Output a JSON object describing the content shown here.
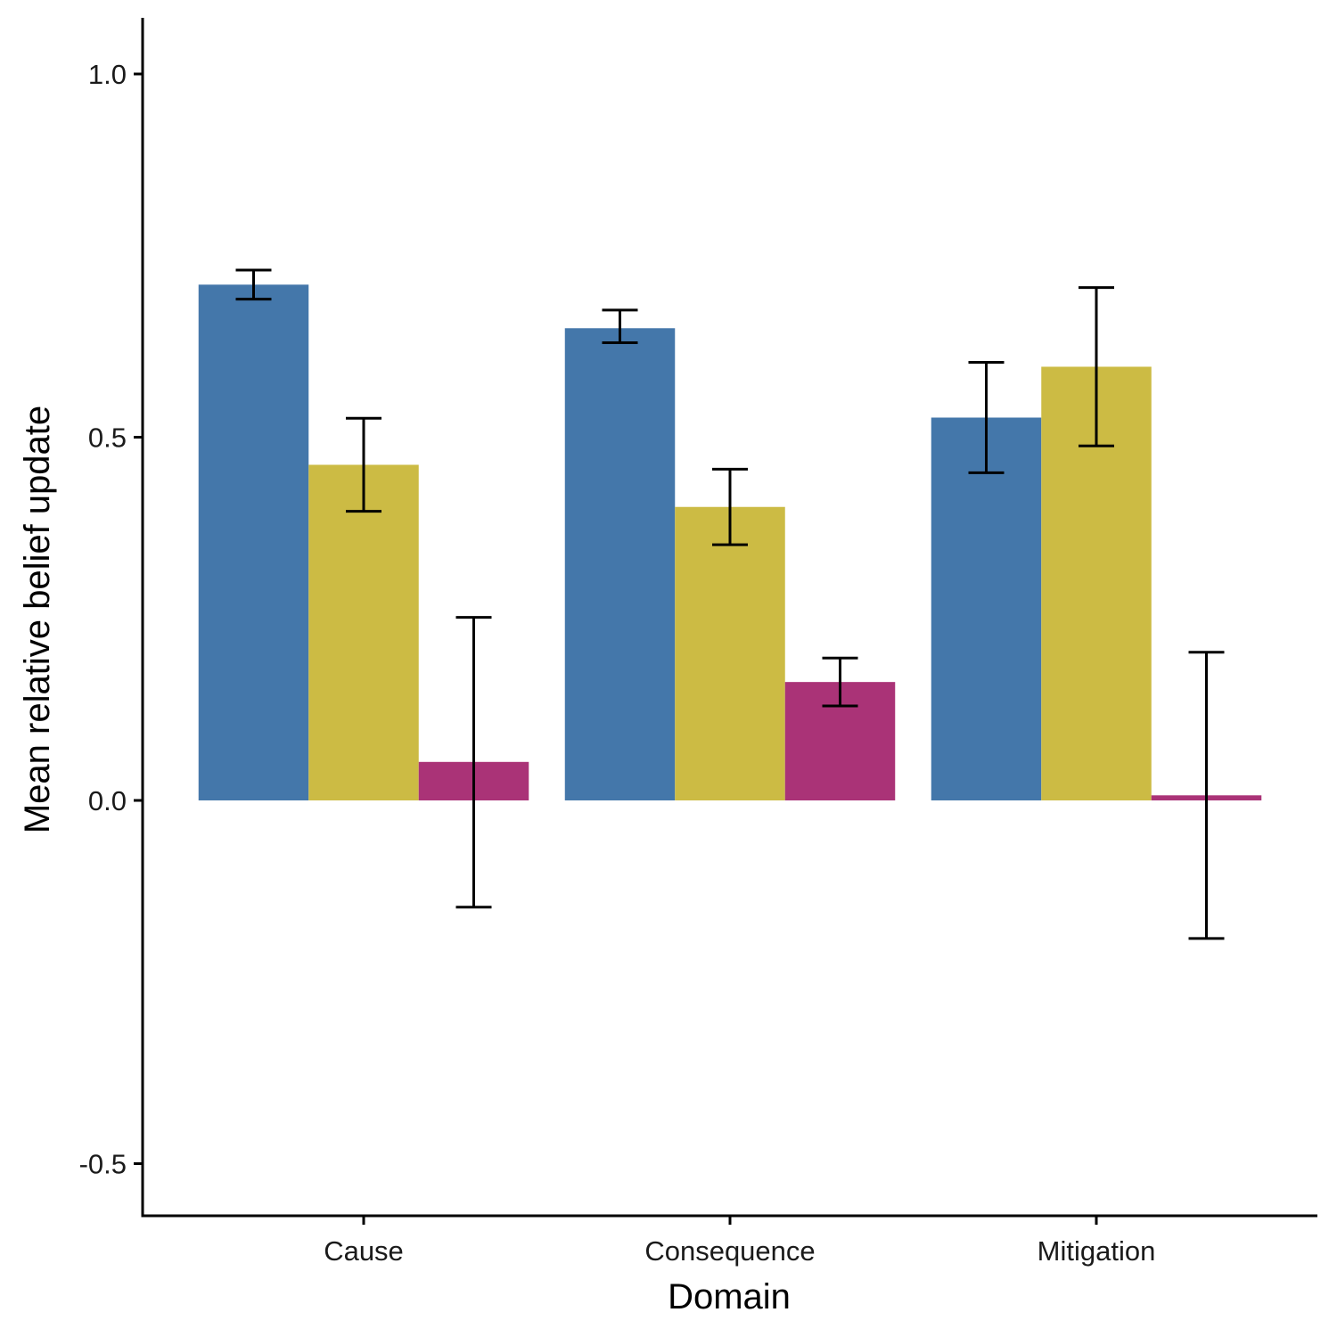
{
  "chart_data": {
    "type": "bar",
    "title": "",
    "xlabel": "Domain",
    "ylabel": "Mean relative belief update",
    "ylim": [
      -0.57,
      1.08
    ],
    "yticks": [
      -0.5,
      0.0,
      0.5,
      1.0
    ],
    "ytick_labels": [
      "-0.5",
      "0.0",
      "0.5",
      "1.0"
    ],
    "categories": [
      "Cause",
      "Consequence",
      "Mitigation"
    ],
    "grid": false,
    "legend": "none",
    "series": [
      {
        "color": "#4477AA",
        "values": [
          0.71,
          0.65,
          0.527
        ],
        "err_low": [
          0.69,
          0.63,
          0.451
        ],
        "err_high": [
          0.73,
          0.675,
          0.603
        ]
      },
      {
        "color": "#CCBB44",
        "values": [
          0.462,
          0.404,
          0.597
        ],
        "err_low": [
          0.398,
          0.352,
          0.488
        ],
        "err_high": [
          0.526,
          0.456,
          0.706
        ]
      },
      {
        "color": "#AA3377",
        "values": [
          0.053,
          0.163,
          0.007
        ],
        "err_low": [
          -0.147,
          0.13,
          -0.19
        ],
        "err_high": [
          0.252,
          0.196,
          0.204
        ]
      }
    ]
  }
}
